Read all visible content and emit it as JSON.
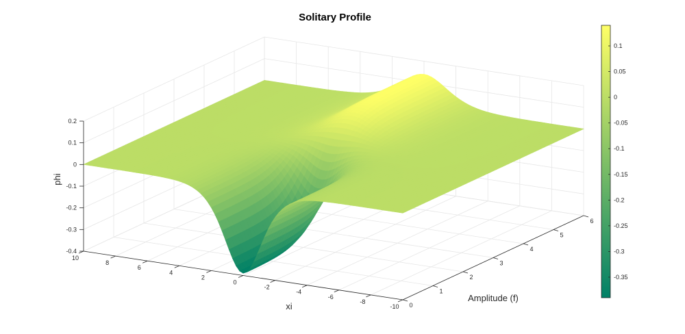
{
  "chart_data": {
    "type": "surface",
    "title": "Solitary Profile",
    "xlabel": "xi",
    "ylabel": "Amplitude (f)",
    "zlabel": "phi",
    "xlim": [
      -10,
      10
    ],
    "ylim": [
      0,
      6
    ],
    "zlim": [
      -0.4,
      0.2
    ],
    "x_ticks": [
      "-10",
      "-8",
      "-6",
      "-4",
      "-2",
      "0",
      "2",
      "4",
      "6",
      "8",
      "10"
    ],
    "y_ticks": [
      "0",
      "1",
      "2",
      "3",
      "4",
      "5",
      "6"
    ],
    "z_ticks": [
      "-0.4",
      "-0.3",
      "-0.2",
      "-0.1",
      "0",
      "0.1",
      "0.2"
    ],
    "surface": {
      "description_of_profile": "",
      "trough_min": -0.39,
      "peak_max": 0.14,
      "trough_center_xi": 0,
      "peak_center_xi": 0
    },
    "colorbar": {
      "colormap": "summer",
      "range": [
        -0.39,
        0.14
      ],
      "ticks": [
        "-0.35",
        "-0.3",
        "-0.25",
        "-0.2",
        "-0.15",
        "-0.1",
        "-0.05",
        "0",
        "0.05",
        "0.1"
      ],
      "color_low": "#008066",
      "color_high": "#ffff66"
    },
    "grid": true
  }
}
